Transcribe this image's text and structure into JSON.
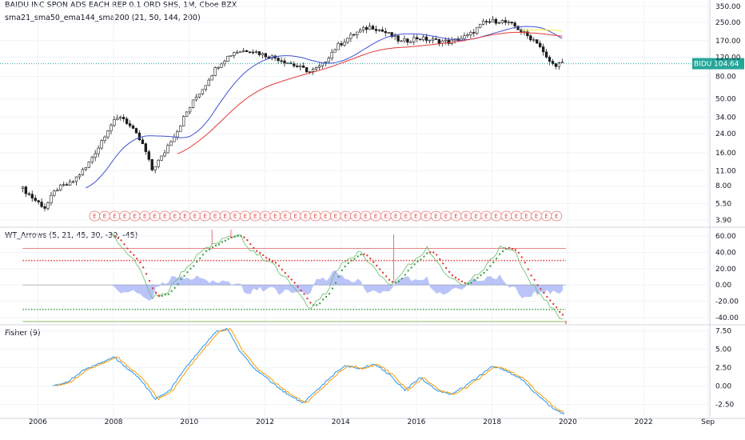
{
  "chart_data": [
    {
      "type": "candlestick",
      "title": "BAIDU INC SPON ADS EACH REP 0.1 ORD SHS, 1M, Cboe BZX",
      "indicator_label": "sma21_sma50_ema144_sma200 (21, 50, 144, 200)",
      "y_scale": "log",
      "ylim": [
        3.4,
        400
      ],
      "y_ticks": [
        "350.00",
        "250.00",
        "170.00",
        "120.00",
        "80.00",
        "50.00",
        "34.00",
        "24.00",
        "16.00",
        "11.00",
        "8.00",
        "5.50",
        "3.90"
      ],
      "x_ticks": [
        "2006",
        "2008",
        "2010",
        "2012",
        "2014",
        "2016",
        "2018",
        "2020",
        "2022",
        "Sep"
      ],
      "last_price": {
        "symbol": "BIDU",
        "value": "104.64",
        "color": "#26a69a"
      },
      "price_anchors": [
        [
          2005.6,
          7.5
        ],
        [
          2005.9,
          6.0
        ],
        [
          2006.2,
          5.0
        ],
        [
          2006.5,
          7.5
        ],
        [
          2006.9,
          8.5
        ],
        [
          2007.3,
          12.0
        ],
        [
          2007.6,
          18.0
        ],
        [
          2007.9,
          28.0
        ],
        [
          2008.2,
          35.0
        ],
        [
          2008.5,
          26.0
        ],
        [
          2008.8,
          18.0
        ],
        [
          2009.0,
          11.0
        ],
        [
          2009.3,
          15.0
        ],
        [
          2009.7,
          26.0
        ],
        [
          2010.0,
          41.0
        ],
        [
          2010.4,
          65.0
        ],
        [
          2010.8,
          105.0
        ],
        [
          2011.2,
          135.0
        ],
        [
          2011.6,
          140.0
        ],
        [
          2012.0,
          125.0
        ],
        [
          2012.4,
          115.0
        ],
        [
          2012.8,
          100.0
        ],
        [
          2013.2,
          88.0
        ],
        [
          2013.5,
          100.0
        ],
        [
          2013.9,
          150.0
        ],
        [
          2014.4,
          200.0
        ],
        [
          2014.8,
          230.0
        ],
        [
          2015.2,
          200.0
        ],
        [
          2015.6,
          165.0
        ],
        [
          2016.0,
          180.0
        ],
        [
          2016.5,
          170.0
        ],
        [
          2016.9,
          165.0
        ],
        [
          2017.4,
          190.0
        ],
        [
          2017.8,
          250.0
        ],
        [
          2018.2,
          260.0
        ],
        [
          2018.6,
          230.0
        ],
        [
          2018.9,
          190.0
        ],
        [
          2019.2,
          165.0
        ],
        [
          2019.4,
          120.0
        ],
        [
          2019.6,
          103.0
        ],
        [
          2019.9,
          104.6
        ]
      ],
      "series": [
        {
          "name": "sma21",
          "color": "#3f51d5"
        },
        {
          "name": "sma50",
          "color": "#e53935"
        },
        {
          "name": "ema144",
          "color": "#ffeb3b"
        }
      ],
      "earnings_marker": "E",
      "earnings_count": 47
    },
    {
      "type": "line",
      "title": "WT_Arrows (5, 21, 45, 30, -30, -45)",
      "ylim": [
        -48,
        70
      ],
      "y_ticks": [
        "60.00",
        "40.00",
        "20.00",
        "0.00",
        "-20.00",
        "-40.00"
      ],
      "levels": [
        {
          "value": 45,
          "color": "#e57373",
          "style": "solid"
        },
        {
          "value": 30,
          "color": "#e53935",
          "style": "dotted"
        },
        {
          "value": 0,
          "color": "#b0b0b0",
          "style": "solid"
        },
        {
          "value": -30,
          "color": "#43a047",
          "style": "dotted"
        },
        {
          "value": -45,
          "color": "#7cb342",
          "style": "solid"
        }
      ],
      "wt1_anchors": [
        [
          2008.0,
          60
        ],
        [
          2008.3,
          42
        ],
        [
          2008.7,
          20
        ],
        [
          2009.0,
          -15
        ],
        [
          2009.4,
          -10
        ],
        [
          2009.8,
          15
        ],
        [
          2010.3,
          40
        ],
        [
          2010.8,
          55
        ],
        [
          2011.3,
          62
        ],
        [
          2011.7,
          40
        ],
        [
          2012.2,
          25
        ],
        [
          2012.7,
          0
        ],
        [
          2013.2,
          -30
        ],
        [
          2013.6,
          -10
        ],
        [
          2014.0,
          25
        ],
        [
          2014.5,
          40
        ],
        [
          2014.9,
          20
        ],
        [
          2015.3,
          0
        ],
        [
          2015.8,
          25
        ],
        [
          2016.3,
          45
        ],
        [
          2016.8,
          10
        ],
        [
          2017.3,
          0
        ],
        [
          2017.8,
          20
        ],
        [
          2018.2,
          45
        ],
        [
          2018.6,
          40
        ],
        [
          2019.0,
          5
        ],
        [
          2019.5,
          -25
        ],
        [
          2019.9,
          -44
        ]
      ],
      "fill_color": "#8c9cf5",
      "dot_colors": {
        "up": "#43a047",
        "down": "#e53935"
      }
    },
    {
      "type": "line",
      "title": "Fisher (9)",
      "ylim": [
        -4.3,
        8.2
      ],
      "y_ticks": [
        "7.50",
        "5.00",
        "2.50",
        "0.00",
        "-2.50"
      ],
      "fisher_anchors": [
        [
          2006.4,
          0.0
        ],
        [
          2006.8,
          0.6
        ],
        [
          2007.2,
          2.2
        ],
        [
          2007.6,
          3.0
        ],
        [
          2008.0,
          4.0
        ],
        [
          2008.3,
          2.6
        ],
        [
          2008.7,
          1.0
        ],
        [
          2009.1,
          -1.8
        ],
        [
          2009.5,
          -0.5
        ],
        [
          2009.9,
          2.5
        ],
        [
          2010.3,
          5.0
        ],
        [
          2010.7,
          7.4
        ],
        [
          2011.0,
          7.8
        ],
        [
          2011.3,
          5.0
        ],
        [
          2011.7,
          2.5
        ],
        [
          2012.1,
          0.8
        ],
        [
          2012.5,
          -0.8
        ],
        [
          2013.0,
          -2.3
        ],
        [
          2013.4,
          -0.5
        ],
        [
          2013.8,
          1.5
        ],
        [
          2014.1,
          2.8
        ],
        [
          2014.5,
          2.4
        ],
        [
          2014.9,
          3.0
        ],
        [
          2015.3,
          1.5
        ],
        [
          2015.7,
          -0.6
        ],
        [
          2016.1,
          1.2
        ],
        [
          2016.5,
          -0.5
        ],
        [
          2016.9,
          -1.2
        ],
        [
          2017.3,
          0.0
        ],
        [
          2017.7,
          1.5
        ],
        [
          2018.0,
          2.7
        ],
        [
          2018.4,
          2.0
        ],
        [
          2018.8,
          0.8
        ],
        [
          2019.2,
          -1.3
        ],
        [
          2019.6,
          -3.0
        ],
        [
          2019.9,
          -3.8
        ]
      ],
      "series": [
        {
          "name": "fisher",
          "color": "#2196f3"
        },
        {
          "name": "trigger",
          "color": "#ff9800"
        }
      ]
    }
  ],
  "colors": {
    "up": "#26a69a",
    "down": "#ef5350",
    "candle": "#1c1c1c",
    "grid": "#f0f3fa",
    "border": "#d1d4dc"
  }
}
